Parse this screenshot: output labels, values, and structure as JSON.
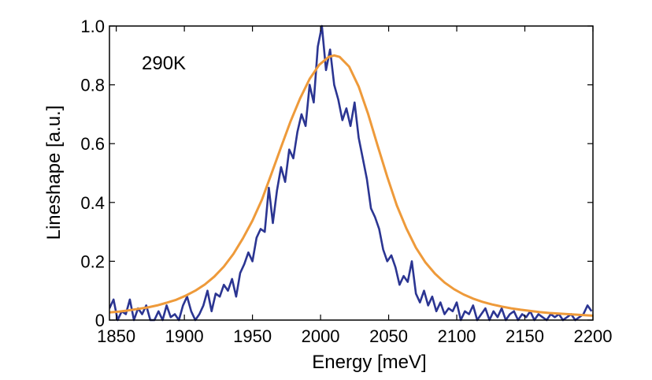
{
  "chart_data": {
    "type": "line",
    "title": "",
    "xlabel": "Energy [meV]",
    "ylabel": "Lineshape [a.u.]",
    "annotation": "290K",
    "xlim": [
      1845,
      2200
    ],
    "ylim": [
      0,
      1.0
    ],
    "xticks": [
      1850,
      1900,
      1950,
      2000,
      2050,
      2100,
      2150,
      2200
    ],
    "yticks": [
      {
        "value": 0,
        "label": "0"
      },
      {
        "value": 0.2,
        "label": "0.2"
      },
      {
        "value": 0.4,
        "label": "0.4"
      },
      {
        "value": 0.6,
        "label": "0.6"
      },
      {
        "value": 0.8,
        "label": "0.8"
      },
      {
        "value": 1.0,
        "label": "1.0"
      }
    ],
    "grid": false,
    "series": [
      {
        "color": "#2b3592",
        "x": [
          1845,
          1848,
          1851,
          1854,
          1857,
          1860,
          1863,
          1866,
          1869,
          1872,
          1875,
          1878,
          1881,
          1884,
          1887,
          1890,
          1893,
          1896,
          1899,
          1902,
          1905,
          1908,
          1911,
          1914,
          1917,
          1920,
          1923,
          1926,
          1929,
          1932,
          1935,
          1938,
          1941,
          1944,
          1947,
          1950,
          1953,
          1956,
          1959,
          1962,
          1965,
          1968,
          1971,
          1974,
          1977,
          1980,
          1983,
          1986,
          1989,
          1992,
          1995,
          1998,
          2001,
          2004,
          2007,
          2010,
          2013,
          2016,
          2019,
          2022,
          2025,
          2028,
          2031,
          2034,
          2037,
          2040,
          2043,
          2046,
          2049,
          2052,
          2055,
          2058,
          2061,
          2064,
          2067,
          2070,
          2073,
          2076,
          2079,
          2082,
          2085,
          2088,
          2091,
          2094,
          2097,
          2100,
          2103,
          2106,
          2109,
          2112,
          2115,
          2118,
          2121,
          2124,
          2127,
          2130,
          2133,
          2136,
          2139,
          2142,
          2145,
          2148,
          2151,
          2154,
          2157,
          2160,
          2163,
          2166,
          2169,
          2172,
          2175,
          2178,
          2181,
          2184,
          2187,
          2190,
          2193,
          2196,
          2199
        ],
        "values": [
          0.04,
          0.07,
          0.0,
          0.03,
          0.02,
          0.07,
          0.0,
          0.04,
          0.02,
          0.05,
          0.0,
          0.0,
          0.03,
          0.0,
          0.05,
          0.01,
          0.02,
          0.0,
          0.05,
          0.08,
          0.03,
          0.0,
          0.02,
          0.05,
          0.1,
          0.03,
          0.09,
          0.08,
          0.12,
          0.1,
          0.14,
          0.08,
          0.16,
          0.19,
          0.23,
          0.2,
          0.28,
          0.31,
          0.3,
          0.45,
          0.33,
          0.44,
          0.52,
          0.47,
          0.58,
          0.55,
          0.64,
          0.7,
          0.66,
          0.8,
          0.74,
          0.93,
          1.0,
          0.85,
          0.92,
          0.8,
          0.75,
          0.68,
          0.72,
          0.66,
          0.74,
          0.62,
          0.55,
          0.48,
          0.38,
          0.35,
          0.31,
          0.24,
          0.2,
          0.22,
          0.18,
          0.12,
          0.15,
          0.13,
          0.2,
          0.09,
          0.06,
          0.1,
          0.05,
          0.08,
          0.03,
          0.06,
          0.02,
          0.04,
          0.03,
          0.06,
          0.0,
          0.03,
          0.02,
          0.05,
          0.0,
          0.02,
          0.04,
          0.0,
          0.03,
          0.01,
          0.04,
          0.0,
          0.02,
          0.03,
          0.0,
          0.02,
          0.01,
          0.03,
          0.0,
          0.02,
          0.01,
          0.0,
          0.02,
          0.01,
          0.02,
          0.0,
          0.01,
          0.02,
          0.0,
          0.01,
          0.02,
          0.05,
          0.03
        ]
      },
      {
        "color": "#ee9a3a",
        "fit": "lorentzian",
        "x": [
          1845,
          1852,
          1859,
          1866,
          1873,
          1880,
          1887,
          1894,
          1901,
          1908,
          1915,
          1922,
          1929,
          1936,
          1943,
          1950,
          1957,
          1964,
          1971,
          1978,
          1985,
          1992,
          1999,
          2006,
          2010,
          2014,
          2021,
          2028,
          2035,
          2042,
          2049,
          2056,
          2063,
          2070,
          2077,
          2084,
          2091,
          2098,
          2105,
          2112,
          2119,
          2126,
          2133,
          2140,
          2147,
          2154,
          2161,
          2168,
          2175,
          2182,
          2189,
          2196,
          2200
        ],
        "values": [
          0.026,
          0.029,
          0.033,
          0.038,
          0.043,
          0.05,
          0.059,
          0.069,
          0.083,
          0.1,
          0.121,
          0.148,
          0.182,
          0.225,
          0.278,
          0.338,
          0.41,
          0.498,
          0.588,
          0.676,
          0.754,
          0.82,
          0.868,
          0.895,
          0.9,
          0.895,
          0.862,
          0.794,
          0.7,
          0.592,
          0.487,
          0.39,
          0.312,
          0.246,
          0.196,
          0.158,
          0.128,
          0.105,
          0.087,
          0.073,
          0.062,
          0.053,
          0.046,
          0.04,
          0.035,
          0.031,
          0.027,
          0.024,
          0.022,
          0.02,
          0.018,
          0.016,
          0.015
        ]
      }
    ]
  }
}
